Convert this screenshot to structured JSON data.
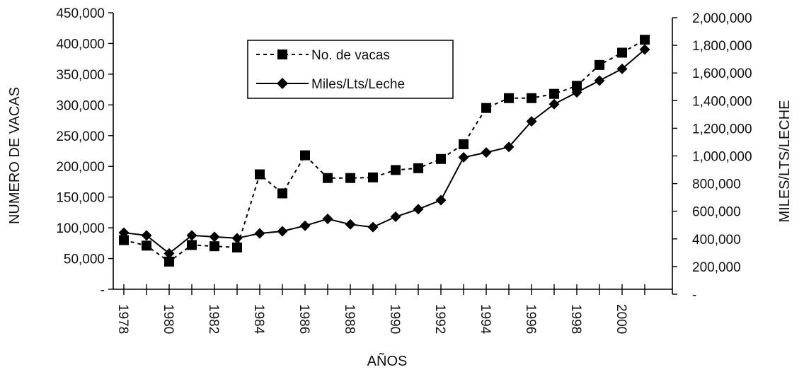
{
  "chart_data": {
    "type": "line",
    "title": "",
    "xlabel": "AÑOS",
    "ylabel_left": "NUMERO DE VACAS",
    "ylabel_right": "MILES/LTS/LECHE",
    "x": [
      1978,
      1979,
      1980,
      1981,
      1982,
      1983,
      1984,
      1985,
      1986,
      1987,
      1988,
      1989,
      1990,
      1991,
      1992,
      1993,
      1994,
      1995,
      1996,
      1997,
      1998,
      1999,
      2000,
      2001
    ],
    "x_tick_labels": [
      "1978",
      "1980",
      "1982",
      "1984",
      "1986",
      "1988",
      "1990",
      "1992",
      "1994",
      "1996",
      "1998",
      "2000"
    ],
    "x_tick_values": [
      1978,
      1980,
      1982,
      1984,
      1986,
      1988,
      1990,
      1992,
      1994,
      1996,
      1998,
      2000
    ],
    "ylim_left": [
      0,
      450000
    ],
    "ylim_right": [
      0,
      2000000
    ],
    "y_left_ticks": [
      0,
      50000,
      100000,
      150000,
      200000,
      250000,
      300000,
      350000,
      400000,
      450000
    ],
    "y_left_tick_labels": [
      "-",
      "50,000",
      "100,000",
      "150,000",
      "200,000",
      "250,000",
      "300,000",
      "350,000",
      "400,000",
      "450,000"
    ],
    "y_right_ticks": [
      0,
      200000,
      400000,
      600000,
      800000,
      1000000,
      1200000,
      1400000,
      1600000,
      1800000,
      2000000
    ],
    "y_right_tick_labels": [
      "-",
      "200,000",
      "400,000",
      "600,000",
      "800,000",
      "1,000,000",
      "1,200,000",
      "1,400,000",
      "1,600,000",
      "1,800,000",
      "2,000,000"
    ],
    "series": [
      {
        "name": "No. de vacas",
        "axis": "left",
        "marker": "square",
        "style": "dashed",
        "values": [
          80000,
          71000,
          45000,
          72000,
          70000,
          68000,
          187000,
          156000,
          218000,
          181000,
          181000,
          182000,
          194000,
          197000,
          212000,
          236000,
          295000,
          311000,
          311000,
          318000,
          331000,
          365000,
          385000,
          406000
        ]
      },
      {
        "name": "Miles/Lts/Leche",
        "axis": "right",
        "marker": "diamond",
        "style": "solid",
        "values": [
          445000,
          425000,
          295000,
          425000,
          415000,
          405000,
          440000,
          455000,
          495000,
          545000,
          505000,
          485000,
          560000,
          615000,
          680000,
          990000,
          1025000,
          1065000,
          1250000,
          1375000,
          1460000,
          1545000,
          1630000,
          1770000
        ]
      }
    ],
    "legend_position": "top-center",
    "grid": false
  }
}
